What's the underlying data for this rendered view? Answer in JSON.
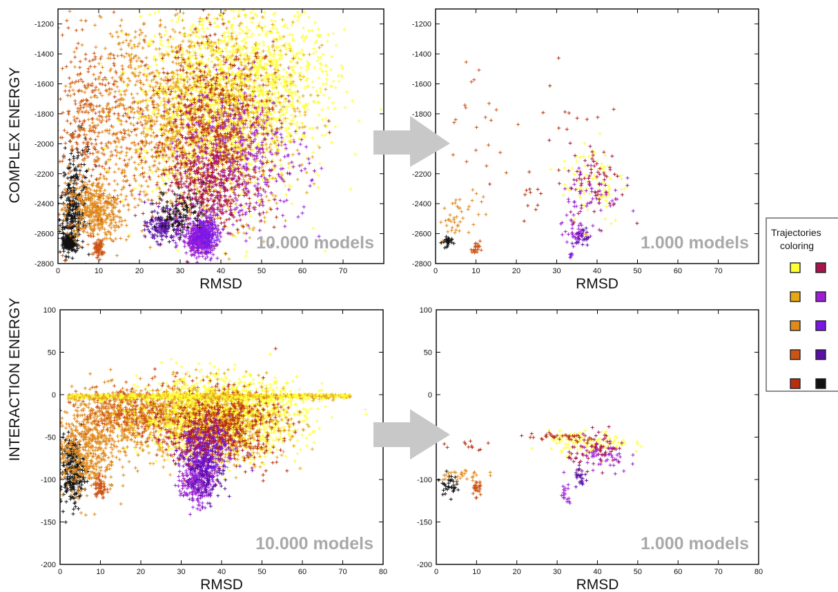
{
  "colors": {
    "trajectories": [
      "#ffff33",
      "#e6a817",
      "#e08a1c",
      "#cc5515",
      "#b82e10",
      "#a8144c",
      "#9b1fd6",
      "#7a16e8",
      "#5a0fa8",
      "#111111"
    ],
    "arrow": "#c8c8c8",
    "watermark": "#a9a9a9"
  },
  "arrow_icon": "right-arrow-icon",
  "row_labels": {
    "top": "COMPLEX ENERGY",
    "bottom": "INTERACTION ENERGY"
  },
  "legend": {
    "title_line1": "Trajectories",
    "title_line2": "coloring",
    "columns": 2,
    "swatch_colors": [
      "#ffff33",
      "#a8144c",
      "#e6a817",
      "#9b1fd6",
      "#e08a1c",
      "#7a16e8",
      "#cc5515",
      "#5a0fa8",
      "#b82e10",
      "#111111"
    ]
  },
  "chart_data": [
    {
      "type": "scatter",
      "xlabel": "RMSD",
      "ylabel": "COMPLEX ENERGY",
      "annotation": "10.000 models",
      "xlim": [
        0,
        80
      ],
      "ylim": [
        -2800,
        -1100
      ],
      "xticks": [
        0,
        10,
        20,
        30,
        40,
        50,
        60,
        70
      ],
      "yticks": [
        -2800,
        -2600,
        -2400,
        -2200,
        -2000,
        -1800,
        -1600,
        -1400,
        -1200
      ],
      "marker": "+",
      "clusters": [
        {
          "x": 2.8,
          "y": -2660,
          "sx": 0.8,
          "sy": 25,
          "n": 180,
          "c": 9
        },
        {
          "x": 3.5,
          "y": -2500,
          "sx": 1.5,
          "sy": 120,
          "n": 220,
          "c": 9
        },
        {
          "x": 4.5,
          "y": -2250,
          "sx": 2.0,
          "sy": 150,
          "n": 100,
          "c": 9
        },
        {
          "x": 9,
          "y": -2450,
          "sx": 3.5,
          "sy": 100,
          "n": 380,
          "c": 2
        },
        {
          "x": 10,
          "y": -2700,
          "sx": 0.6,
          "sy": 28,
          "n": 70,
          "c": 3
        },
        {
          "x": 8,
          "y": -1900,
          "sx": 5,
          "sy": 300,
          "n": 320,
          "c": 3
        },
        {
          "x": 20,
          "y": -1800,
          "sx": 9,
          "sy": 350,
          "n": 650,
          "c": 2
        },
        {
          "x": 40,
          "y": -1750,
          "sx": 10,
          "sy": 320,
          "n": 1400,
          "c": 0
        },
        {
          "x": 40,
          "y": -1800,
          "sx": 10,
          "sy": 330,
          "n": 900,
          "c": 1
        },
        {
          "x": 38,
          "y": -1950,
          "sx": 8,
          "sy": 300,
          "n": 700,
          "c": 4
        },
        {
          "x": 45,
          "y": -2100,
          "sx": 8,
          "sy": 250,
          "n": 400,
          "c": 6
        },
        {
          "x": 36,
          "y": -2300,
          "sx": 5,
          "sy": 150,
          "n": 300,
          "c": 5
        },
        {
          "x": 26,
          "y": -2550,
          "sx": 2,
          "sy": 50,
          "n": 160,
          "c": 8
        },
        {
          "x": 34.5,
          "y": -2640,
          "sx": 2,
          "sy": 55,
          "n": 320,
          "c": 6
        },
        {
          "x": 36,
          "y": -2600,
          "sx": 1.5,
          "sy": 60,
          "n": 160,
          "c": 7
        },
        {
          "x": 30,
          "y": -2450,
          "sx": 3,
          "sy": 80,
          "n": 100,
          "c": 9
        },
        {
          "x": 55,
          "y": -1500,
          "sx": 8,
          "sy": 200,
          "n": 350,
          "c": 0
        }
      ]
    },
    {
      "type": "scatter",
      "xlabel": "RMSD",
      "annotation": "1.000 models",
      "xlim": [
        0,
        80
      ],
      "ylim": [
        -2800,
        -1100
      ],
      "xticks": [
        0,
        10,
        20,
        30,
        40,
        50,
        60,
        70
      ],
      "yticks": [
        -2800,
        -2600,
        -2400,
        -2200,
        -2000,
        -1800,
        -1600,
        -1400,
        -1200
      ],
      "marker": "+",
      "clusters": [
        {
          "x": 2.8,
          "y": -2660,
          "sx": 0.6,
          "sy": 20,
          "n": 30,
          "c": 9
        },
        {
          "x": 4,
          "y": -2520,
          "sx": 1.5,
          "sy": 70,
          "n": 30,
          "c": 2
        },
        {
          "x": 10,
          "y": -2700,
          "sx": 0.5,
          "sy": 25,
          "n": 22,
          "c": 3
        },
        {
          "x": 9,
          "y": -2450,
          "sx": 2,
          "sy": 70,
          "n": 12,
          "c": 2
        },
        {
          "x": 10,
          "y": -1850,
          "sx": 5,
          "sy": 250,
          "n": 22,
          "c": 3
        },
        {
          "x": 35,
          "y": -2600,
          "sx": 1.5,
          "sy": 40,
          "n": 35,
          "c": 6
        },
        {
          "x": 36.5,
          "y": -2620,
          "sx": 0.8,
          "sy": 30,
          "n": 25,
          "c": 8
        },
        {
          "x": 39,
          "y": -2250,
          "sx": 4,
          "sy": 150,
          "n": 90,
          "c": 0
        },
        {
          "x": 40,
          "y": -2250,
          "sx": 3.5,
          "sy": 130,
          "n": 70,
          "c": 5
        },
        {
          "x": 38,
          "y": -2350,
          "sx": 4,
          "sy": 120,
          "n": 50,
          "c": 6
        },
        {
          "x": 33,
          "y": -1800,
          "sx": 5,
          "sy": 150,
          "n": 12,
          "c": 4
        },
        {
          "x": 25,
          "y": -2300,
          "sx": 5,
          "sy": 80,
          "n": 14,
          "c": 4
        },
        {
          "x": 33.5,
          "y": -2740,
          "sx": 0.2,
          "sy": 10,
          "n": 6,
          "c": 7
        }
      ]
    },
    {
      "type": "scatter",
      "xlabel": "RMSD",
      "ylabel": "INTERACTION ENERGY",
      "annotation": "10.000 models",
      "xlim": [
        0,
        80
      ],
      "ylim": [
        -200,
        100
      ],
      "xticks": [
        0,
        10,
        20,
        30,
        40,
        50,
        60,
        70,
        80
      ],
      "yticks": [
        -200,
        -150,
        -100,
        -50,
        0,
        50,
        100
      ],
      "marker": "+",
      "clusters": [
        {
          "x": 3,
          "y": -90,
          "sx": 1.5,
          "sy": 20,
          "n": 260,
          "c": 9
        },
        {
          "x": 6,
          "y": -65,
          "sx": 4,
          "sy": 25,
          "n": 450,
          "c": 2
        },
        {
          "x": 10,
          "y": -110,
          "sx": 0.7,
          "sy": 8,
          "n": 60,
          "c": 3
        },
        {
          "x": 15,
          "y": -30,
          "sx": 6,
          "sy": 18,
          "n": 400,
          "c": 2
        },
        {
          "x": 22,
          "y": -20,
          "sx": 8,
          "sy": 15,
          "n": 450,
          "c": 3
        },
        {
          "x": 40,
          "y": -25,
          "sx": 10,
          "sy": 22,
          "n": 1400,
          "c": 0
        },
        {
          "x": 38,
          "y": -35,
          "sx": 9,
          "sy": 25,
          "n": 700,
          "c": 1
        },
        {
          "x": 40,
          "y": -40,
          "sx": 7,
          "sy": 22,
          "n": 500,
          "c": 4
        },
        {
          "x": 34,
          "y": -95,
          "sx": 2,
          "sy": 18,
          "n": 280,
          "c": 6
        },
        {
          "x": 36,
          "y": -85,
          "sx": 2.5,
          "sy": 20,
          "n": 200,
          "c": 8
        },
        {
          "x": 37,
          "y": -65,
          "sx": 3.5,
          "sy": 18,
          "n": 150,
          "c": 7
        },
        {
          "x": 34,
          "y": -50,
          "sx": 4,
          "sy": 15,
          "n": 120,
          "c": 5
        }
      ],
      "ridge": {
        "x0": 2,
        "x1": 72,
        "y": 0,
        "n": 900,
        "colors": [
          0,
          0,
          0,
          1,
          2
        ]
      }
    },
    {
      "type": "scatter",
      "xlabel": "RMSD",
      "annotation": "1.000 models",
      "xlim": [
        0,
        80
      ],
      "ylim": [
        -200,
        100
      ],
      "xticks": [
        0,
        10,
        20,
        30,
        40,
        50,
        60,
        70,
        80
      ],
      "yticks": [
        -200,
        -150,
        -100,
        -50,
        0,
        50,
        100
      ],
      "marker": "+",
      "clusters": [
        {
          "x": 3,
          "y": -105,
          "sx": 1,
          "sy": 6,
          "n": 35,
          "c": 9
        },
        {
          "x": 6,
          "y": -95,
          "sx": 3,
          "sy": 4,
          "n": 30,
          "c": 2
        },
        {
          "x": 10,
          "y": -110,
          "sx": 0.6,
          "sy": 6,
          "n": 25,
          "c": 3
        },
        {
          "x": 7,
          "y": -58,
          "sx": 4,
          "sy": 5,
          "n": 12,
          "c": 4
        },
        {
          "x": 38,
          "y": -57,
          "sx": 5,
          "sy": 7,
          "n": 110,
          "c": 0
        },
        {
          "x": 40,
          "y": -65,
          "sx": 3.5,
          "sy": 10,
          "n": 80,
          "c": 5
        },
        {
          "x": 36,
          "y": -98,
          "sx": 0.8,
          "sy": 6,
          "n": 25,
          "c": 8
        },
        {
          "x": 32,
          "y": -118,
          "sx": 0.8,
          "sy": 8,
          "n": 18,
          "c": 6
        },
        {
          "x": 30,
          "y": -50,
          "sx": 5,
          "sy": 2,
          "n": 35,
          "c": 4
        },
        {
          "x": 42,
          "y": -75,
          "sx": 3,
          "sy": 10,
          "n": 40,
          "c": 6
        }
      ]
    }
  ]
}
